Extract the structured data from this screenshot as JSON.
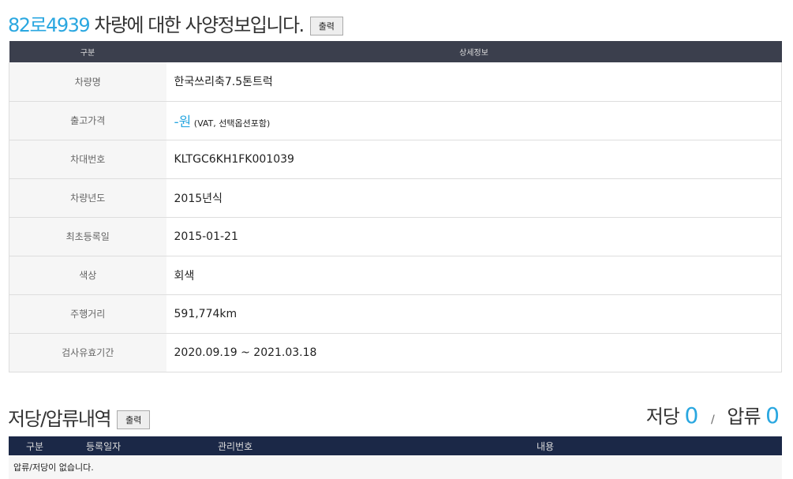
{
  "spec": {
    "plate": "82로4939",
    "title_suffix": " 차량에 대한 사양정보입니다.",
    "print_label": "출력",
    "headers": [
      "구분",
      "상세정보"
    ],
    "rows": [
      {
        "label": "차량명",
        "value": "한국쓰리축7.5톤트럭"
      },
      {
        "label": "출고가격",
        "value": "-원",
        "note": " (VAT, 선택옵션포함)"
      },
      {
        "label": "차대번호",
        "value": "KLTGC6KH1FK001039"
      },
      {
        "label": "차량년도",
        "value": "2015년식"
      },
      {
        "label": "최초등록일",
        "value": "2015-01-21"
      },
      {
        "label": "색상",
        "value": "회색"
      },
      {
        "label": "주행거리",
        "value": "591,774km"
      },
      {
        "label": "검사유효기간",
        "value": "2020.09.19 ~ 2021.03.18"
      }
    ]
  },
  "lien": {
    "title": "저당/압류내역",
    "print_label": "출력",
    "mortgage_label": "저당",
    "mortgage_count": "0",
    "sep": "/",
    "seizure_label": "압류",
    "seizure_count": "0",
    "headers": [
      "구분",
      "등록일자",
      "관리번호",
      "내용"
    ],
    "empty": "압류/저당이 없습니다."
  }
}
